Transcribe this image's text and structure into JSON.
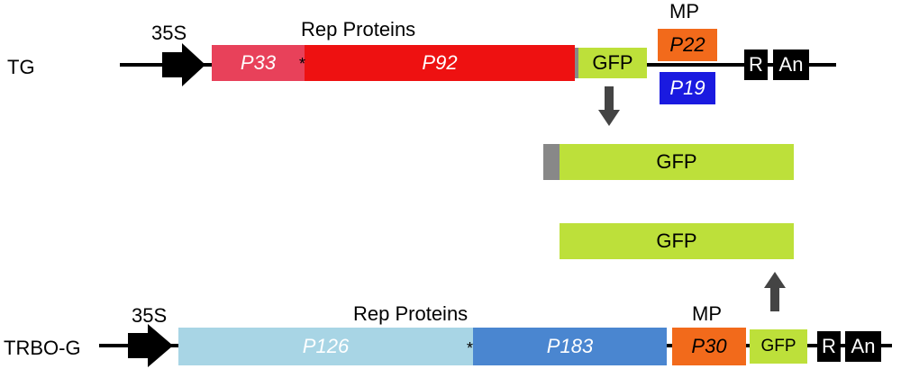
{
  "top": {
    "row_label": "TG",
    "promoter": "35S",
    "rep_label": "Rep Proteins",
    "mp_label": "MP",
    "p33": "P33",
    "p92": "P92",
    "gfp": "GFP",
    "p22": "P22",
    "p19": "P19",
    "r": "R",
    "an": "An",
    "star": "*"
  },
  "middle": {
    "gfp_fusion": "GFP",
    "gfp_free": "GFP"
  },
  "bottom": {
    "row_label": "TRBO-G",
    "promoter": "35S",
    "rep_label": "Rep Proteins",
    "mp_label": "MP",
    "p126": "P126",
    "p183": "P183",
    "p30": "P30",
    "gfp": "GFP",
    "r": "R",
    "an": "An",
    "star": "*"
  },
  "colors": {
    "p33": "#e8415a",
    "p92": "#ee1111",
    "gfp": "#bde03a",
    "p22": "#f26a1b",
    "p19": "#1a1ae0",
    "p126": "#a8d5e5",
    "p183": "#4a86d0",
    "p30": "#f26a1b",
    "grey_tag": "#888888",
    "arrow": "#444444"
  }
}
